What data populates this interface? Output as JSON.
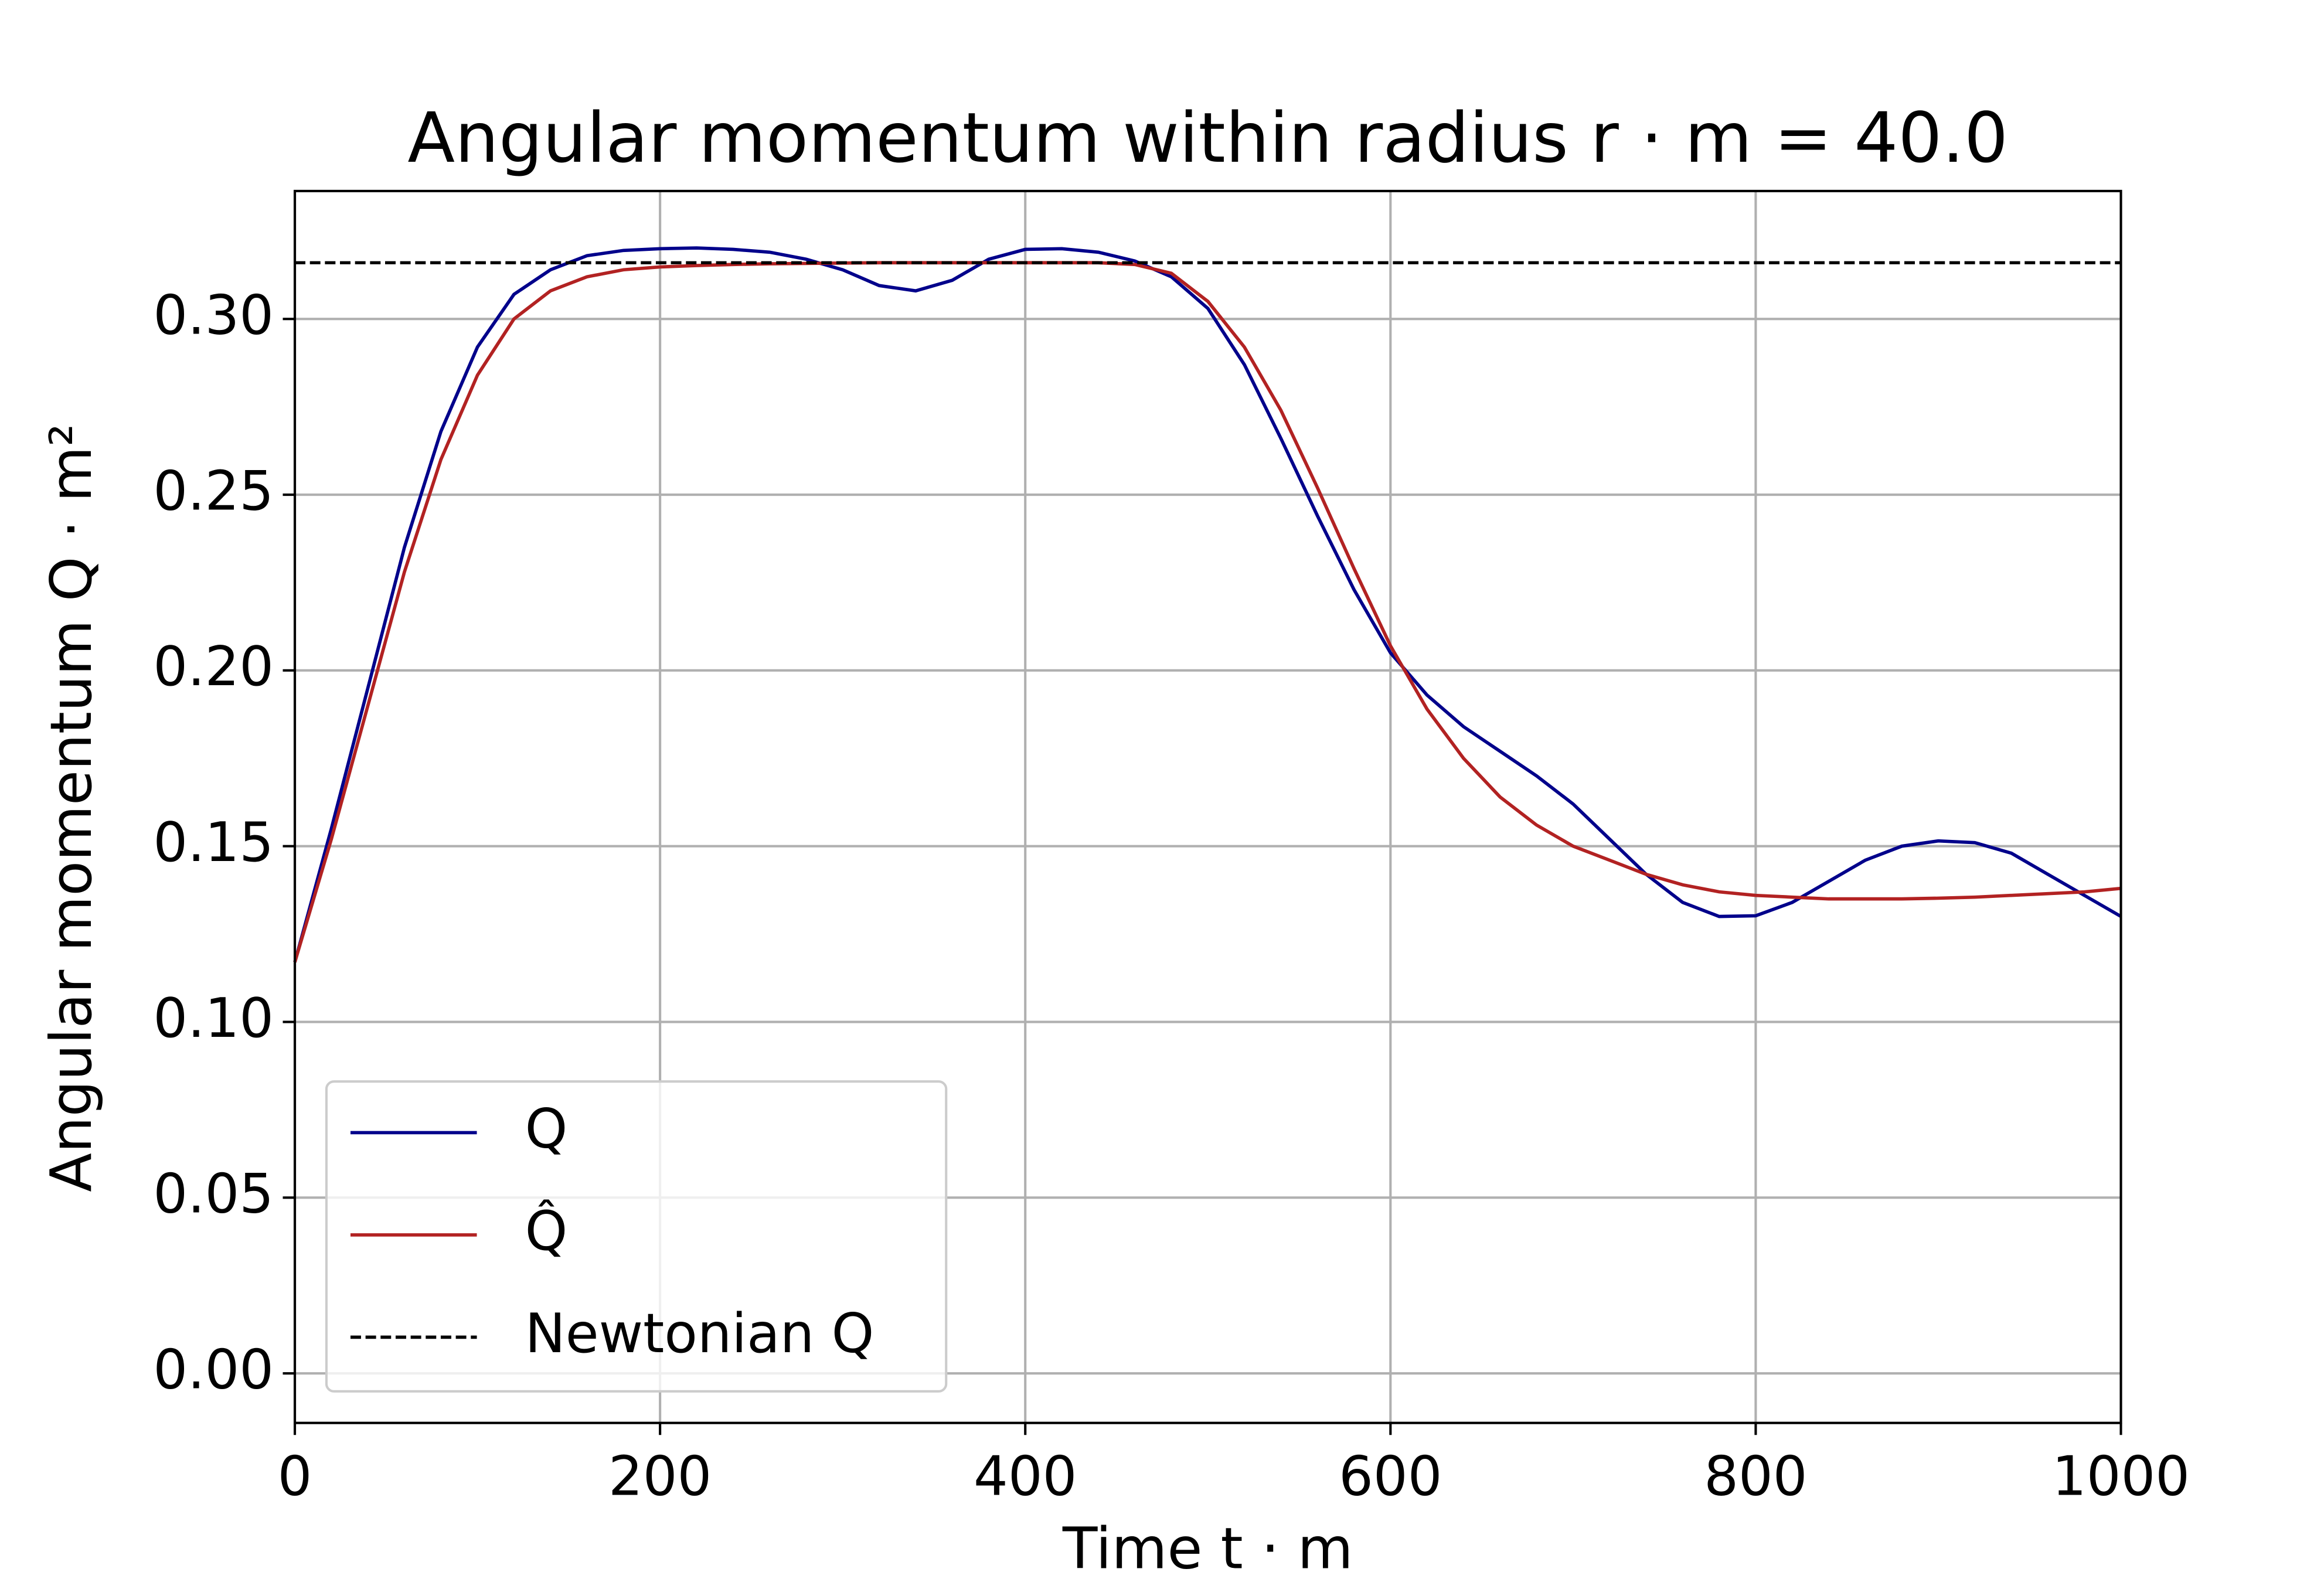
{
  "chart_data": {
    "type": "line",
    "title": "Angular momentum within radius r · m = 40.0",
    "x_label": "Time t · m",
    "y_label": "Angular momentum Q · m²",
    "x": [
      0,
      20,
      40,
      60,
      80,
      100,
      120,
      140,
      160,
      180,
      200,
      220,
      240,
      260,
      280,
      300,
      320,
      340,
      360,
      380,
      400,
      420,
      440,
      460,
      480,
      500,
      520,
      540,
      560,
      580,
      600,
      620,
      640,
      660,
      680,
      700,
      720,
      740,
      760,
      780,
      800,
      820,
      840,
      860,
      880,
      900,
      920,
      940,
      960,
      980,
      1000
    ],
    "series": [
      {
        "name": "Q",
        "color": "#00008b",
        "values": [
          0.117,
          0.155,
          0.195,
          0.235,
          0.268,
          0.292,
          0.307,
          0.314,
          0.318,
          0.3195,
          0.32,
          0.3202,
          0.3198,
          0.319,
          0.317,
          0.314,
          0.3095,
          0.308,
          0.311,
          0.317,
          0.3198,
          0.32,
          0.319,
          0.3165,
          0.312,
          0.303,
          0.287,
          0.266,
          0.244,
          0.223,
          0.205,
          0.193,
          0.184,
          0.177,
          0.17,
          0.162,
          0.152,
          0.142,
          0.134,
          0.13,
          0.1302,
          0.134,
          0.14,
          0.146,
          0.15,
          0.1515,
          0.151,
          0.148,
          0.142,
          0.136,
          0.13
        ]
      },
      {
        "name": "Q̂",
        "color": "#b22222",
        "values": [
          0.117,
          0.152,
          0.19,
          0.228,
          0.26,
          0.284,
          0.3,
          0.308,
          0.312,
          0.314,
          0.3148,
          0.3152,
          0.3155,
          0.3157,
          0.3158,
          0.3159,
          0.316,
          0.316,
          0.316,
          0.316,
          0.316,
          0.316,
          0.316,
          0.3155,
          0.313,
          0.305,
          0.292,
          0.274,
          0.252,
          0.229,
          0.207,
          0.189,
          0.175,
          0.164,
          0.156,
          0.15,
          0.146,
          0.142,
          0.139,
          0.137,
          0.136,
          0.1355,
          0.135,
          0.135,
          0.135,
          0.1352,
          0.1355,
          0.136,
          0.1365,
          0.137,
          0.138
        ]
      }
    ],
    "hlines": [
      {
        "name": "Newtonian Q",
        "color": "#000000",
        "value": 0.316,
        "style": "dashed"
      }
    ],
    "xlim": [
      0,
      1000
    ],
    "xticks": [
      0,
      200,
      400,
      600,
      800,
      1000
    ],
    "ylim": [
      -0.0141,
      0.3364
    ],
    "yticks": [
      {
        "value": 0,
        "label": "0.00"
      },
      0.05,
      {
        "value": 0.1,
        "label": "0.10"
      },
      0.15,
      {
        "value": 0.2,
        "label": "0.20"
      },
      0.25,
      {
        "value": 0.3,
        "label": "0.30"
      }
    ],
    "grid": true,
    "legend": "lower left"
  }
}
